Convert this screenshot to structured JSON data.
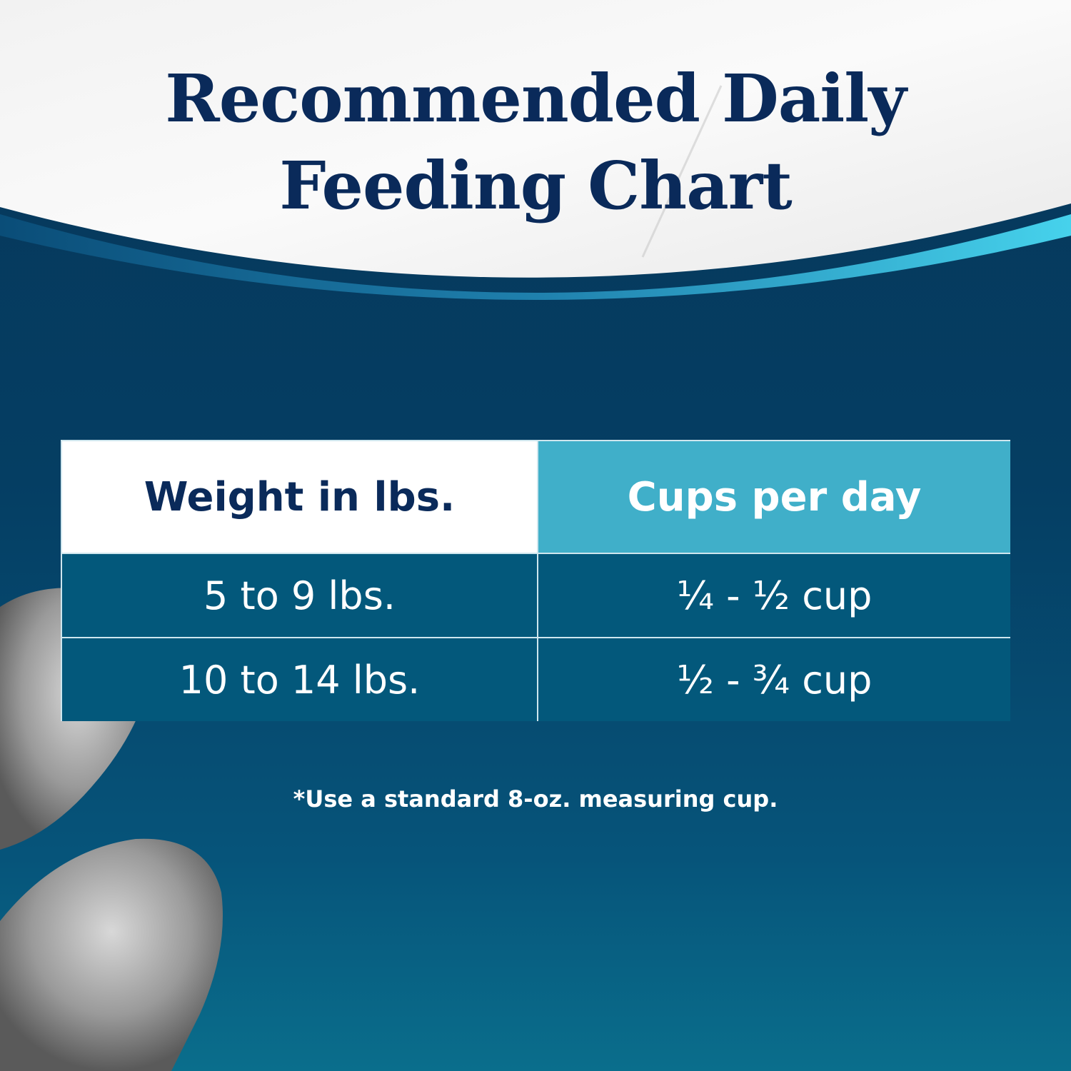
{
  "title": {
    "line1": "Recommended Daily",
    "line2": "Feeding Chart"
  },
  "table": {
    "headers": [
      "Weight in lbs.",
      "Cups per day"
    ],
    "rows": [
      [
        "5 to 9 lbs.",
        "¼ - ½ cup"
      ],
      [
        "10 to 14 lbs.",
        "½ - ¾ cup"
      ]
    ]
  },
  "footnote": "*Use a standard 8-oz. measuring cup.",
  "colors": {
    "navy": "#0a2a5a",
    "header_accent": "#40afc9",
    "row_bg": "#03587b",
    "background": "#053e63"
  }
}
